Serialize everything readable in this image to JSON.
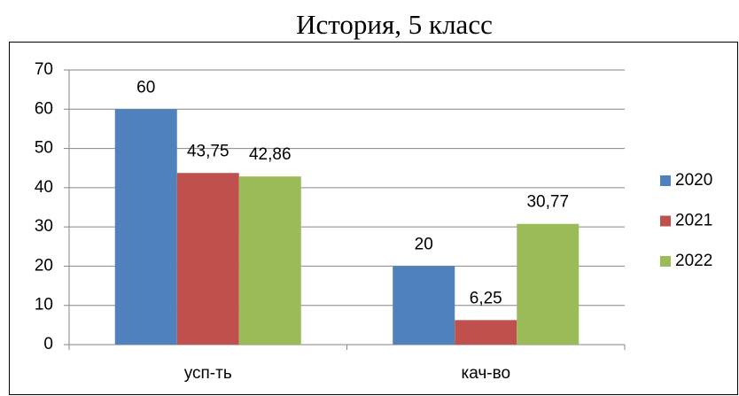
{
  "chart_data": {
    "type": "bar",
    "title": "История, 5 класс",
    "categories": [
      "усп-ть",
      "кач-во"
    ],
    "series": [
      {
        "name": "2020",
        "color": "#4f81bd",
        "values": [
          60,
          20
        ]
      },
      {
        "name": "2021",
        "color": "#c0504d",
        "values": [
          43.75,
          6.25
        ],
        "value_labels": [
          "43,75",
          "6,25"
        ]
      },
      {
        "name": "2022",
        "color": "#9bbb59",
        "values": [
          42.86,
          30.77
        ],
        "value_labels": [
          "42,86",
          "30,77"
        ]
      }
    ],
    "ylim": [
      0,
      70
    ],
    "yticks": [
      0,
      10,
      20,
      30,
      40,
      50,
      60,
      70
    ],
    "grid": true,
    "legend": "right"
  }
}
